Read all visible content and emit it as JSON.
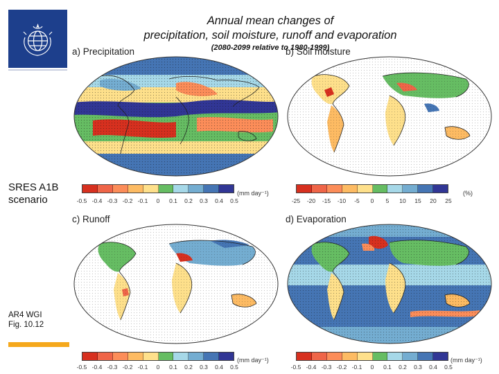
{
  "header": {
    "title_line1": "Annual mean changes of",
    "title_line2": "precipitation, soil moisture, runoff and evaporation",
    "subtitle": "(2080-2099 relative to 1980-1999)"
  },
  "sidebar": {
    "scenario_line1": "SRES A1B",
    "scenario_line2": "scenario",
    "source_line1": "AR4 WGI",
    "source_line2": "Fig. 10.12"
  },
  "colors": {
    "brand_blue": "#1d3f8c",
    "accent_orange": "#f5a81c",
    "scale": [
      "#d7301f",
      "#ef6548",
      "#fc8d59",
      "#fdbb63",
      "#fee08b",
      "#66bd63",
      "#a6d8e8",
      "#74add1",
      "#4575b4",
      "#313695"
    ]
  },
  "panels": {
    "a": {
      "label": "a) Precipitation",
      "ticks": [
        "-0.5",
        "-0.4",
        "-0.3",
        "-0.2",
        "-0.1",
        "0",
        "0.1",
        "0.2",
        "0.3",
        "0.4",
        "0.5"
      ],
      "unit": "(mm day⁻¹)"
    },
    "b": {
      "label": "b) Soil moisture",
      "ticks": [
        "-25",
        "-20",
        "-15",
        "-10",
        "-5",
        "0",
        "5",
        "10",
        "15",
        "20",
        "25"
      ],
      "unit": "(%)"
    },
    "c": {
      "label": "c) Runoff",
      "ticks": [
        "-0.5",
        "-0.4",
        "-0.3",
        "-0.2",
        "-0.1",
        "0",
        "0.1",
        "0.2",
        "0.3",
        "0.4",
        "0.5"
      ],
      "unit": "(mm day⁻¹)"
    },
    "d": {
      "label": "d) Evaporation",
      "ticks": [
        "-0.5",
        "-0.4",
        "-0.3",
        "-0.2",
        "-0.1",
        "0",
        "0.1",
        "0.2",
        "0.3",
        "0.4",
        "0.5"
      ],
      "unit": "(mm day⁻¹)"
    }
  }
}
